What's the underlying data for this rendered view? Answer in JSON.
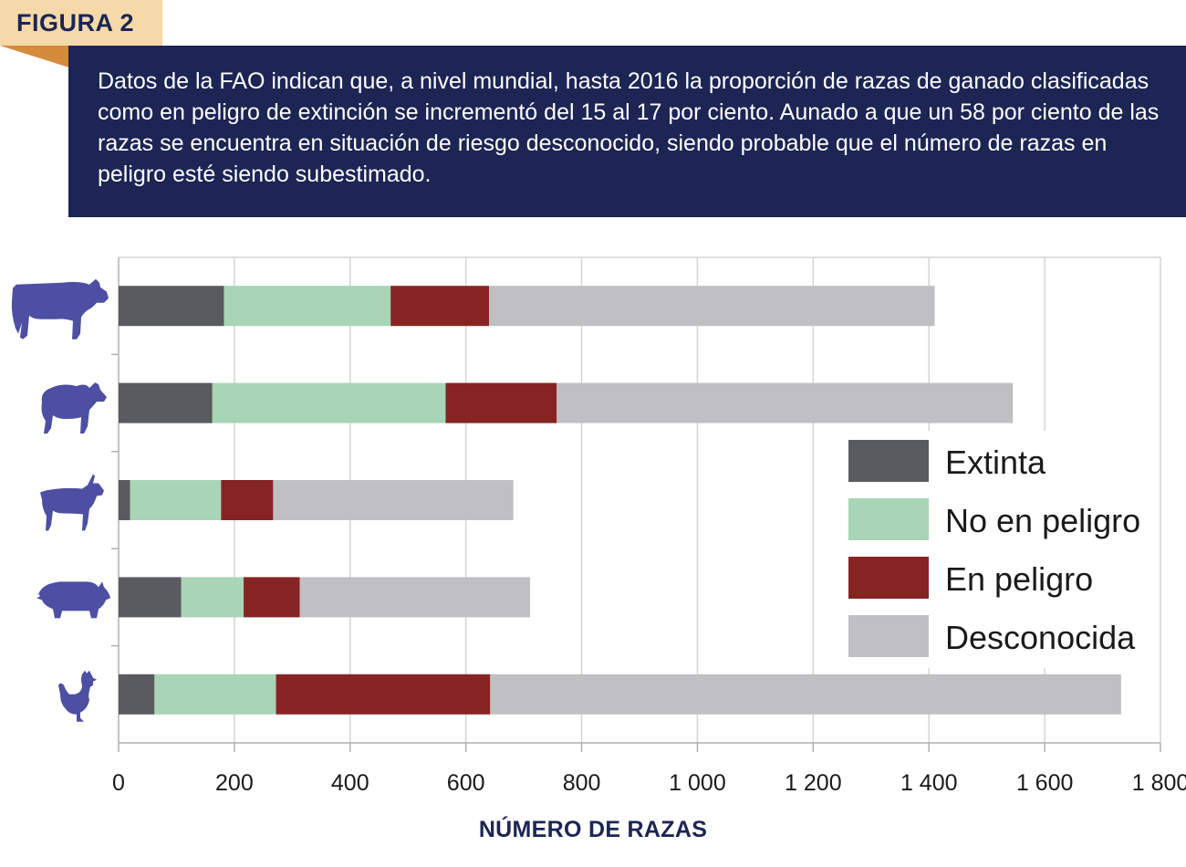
{
  "figure_tag": "FIGURA 2",
  "caption": "Datos de la FAO indican que, a nivel mundial, hasta 2016 la proporción de razas de ganado clasificadas como en peligro de extinción se incrementó del 15 al 17 por ciento. Aunado a que un 58 por ciento de las razas se encuentra en situación de riesgo desconocido, siendo probable que el número de razas en peligro esté siendo subestimado.",
  "colors": {
    "navy": "#1c2554",
    "icon": "#4d4fa3",
    "tag_bg": "#f5d9a8",
    "tag_fold": "#d68a3c"
  },
  "chart_data": {
    "type": "bar",
    "orientation": "horizontal",
    "stacked": true,
    "categories": [
      "cow-icon",
      "sheep-icon",
      "goat-icon",
      "pig-icon",
      "chicken-icon"
    ],
    "series": [
      {
        "name": "Extinta",
        "color": "#5a5b5e",
        "values": [
          182,
          162,
          20,
          108,
          62
        ]
      },
      {
        "name": "No en peligro",
        "color": "#a8d5b5",
        "values": [
          288,
          403,
          157,
          108,
          210
        ]
      },
      {
        "name": "En peligro",
        "color": "#862424",
        "values": [
          170,
          192,
          90,
          97,
          370
        ]
      },
      {
        "name": "Desconocida",
        "color": "#c0c0c2",
        "values": [
          770,
          788,
          415,
          398,
          1090
        ]
      }
    ],
    "xlabel": "NÚMERO DE RAZAS",
    "xlim": [
      0,
      1800
    ],
    "xticks": [
      0,
      200,
      400,
      600,
      800,
      1000,
      1200,
      1400,
      1600,
      1800
    ],
    "xtick_labels": [
      "0",
      "200",
      "400",
      "600",
      "800",
      "1 000",
      "1 200",
      "1 400",
      "1 600",
      "1 800"
    ],
    "grid": true,
    "legend_position": "right"
  }
}
